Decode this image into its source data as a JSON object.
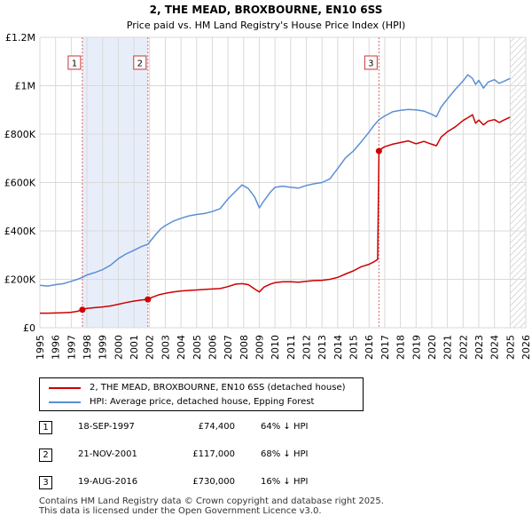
{
  "chart_data": {
    "type": "line",
    "title": "2, THE MEAD, BROXBOURNE, EN10 6SS",
    "subtitle": "Price paid vs. HM Land Registry's House Price Index (HPI)",
    "xlabel": "",
    "ylabel": "",
    "xlim": [
      1995,
      2026
    ],
    "ylim": [
      0,
      1200000
    ],
    "x_ticks": [
      1995,
      1996,
      1997,
      1998,
      1999,
      2000,
      2001,
      2002,
      2003,
      2004,
      2005,
      2006,
      2007,
      2008,
      2009,
      2010,
      2011,
      2012,
      2013,
      2014,
      2015,
      2016,
      2017,
      2018,
      2019,
      2020,
      2021,
      2022,
      2023,
      2024,
      2025,
      2026
    ],
    "x_tick_labels": [
      "1995",
      "1996",
      "1997",
      "1998",
      "1999",
      "2000",
      "2001",
      "2002",
      "2003",
      "2004",
      "2005",
      "2006",
      "2007",
      "2008",
      "2009",
      "2010",
      "2011",
      "2012",
      "2013",
      "2014",
      "2015",
      "2016",
      "2017",
      "2018",
      "2019",
      "2020",
      "2021",
      "2022",
      "2023",
      "2024",
      "2025",
      "2026"
    ],
    "y_ticks": [
      0,
      200000,
      400000,
      600000,
      800000,
      1000000,
      1200000
    ],
    "y_tick_labels": [
      "£0",
      "£200K",
      "£400K",
      "£600K",
      "£800K",
      "£1M",
      "£1.2M"
    ],
    "grid": true,
    "shaded_range": [
      1997.71,
      2001.89
    ],
    "hatched_from": 2025.0,
    "series": [
      {
        "name": "2, THE MEAD, BROXBOURNE, EN10 6SS (detached house)",
        "color": "#cc0000",
        "x": [
          1995.0,
          1995.5,
          1996.0,
          1996.5,
          1997.0,
          1997.4,
          1997.71,
          1998.0,
          1998.5,
          1999.0,
          1999.5,
          2000.0,
          2000.5,
          2001.0,
          2001.5,
          2001.89,
          2002.2,
          2002.6,
          2003.0,
          2003.5,
          2004.0,
          2004.5,
          2005.0,
          2005.5,
          2006.0,
          2006.5,
          2007.0,
          2007.5,
          2007.9,
          2008.3,
          2008.7,
          2009.0,
          2009.3,
          2009.7,
          2010.0,
          2010.5,
          2011.0,
          2011.5,
          2012.0,
          2012.5,
          2013.0,
          2013.5,
          2014.0,
          2014.5,
          2015.0,
          2015.5,
          2016.0,
          2016.3,
          2016.55,
          2016.63,
          2016.8,
          2017.0,
          2017.5,
          2018.0,
          2018.5,
          2019.0,
          2019.5,
          2020.0,
          2020.3,
          2020.6,
          2021.0,
          2021.5,
          2022.0,
          2022.3,
          2022.6,
          2022.8,
          2023.0,
          2023.3,
          2023.6,
          2024.0,
          2024.3,
          2024.6,
          2025.0
        ],
        "y": [
          60000,
          60000,
          61000,
          62000,
          64000,
          68000,
          74400,
          80000,
          83000,
          86000,
          90000,
          97000,
          104000,
          110000,
          115000,
          117000,
          127000,
          136000,
          142000,
          148000,
          152000,
          154000,
          156000,
          158000,
          160000,
          162000,
          170000,
          180000,
          182000,
          178000,
          160000,
          148000,
          168000,
          180000,
          186000,
          190000,
          190000,
          188000,
          192000,
          195000,
          196000,
          200000,
          208000,
          222000,
          235000,
          252000,
          262000,
          272000,
          282000,
          730000,
          740000,
          748000,
          758000,
          765000,
          772000,
          760000,
          770000,
          758000,
          752000,
          788000,
          810000,
          830000,
          856000,
          868000,
          880000,
          845000,
          858000,
          838000,
          854000,
          860000,
          848000,
          858000,
          870000
        ]
      },
      {
        "name": "HPI: Average price, detached house, Epping Forest",
        "color": "#5b8fd6",
        "x": [
          1995.0,
          1995.5,
          1996.0,
          1996.5,
          1997.0,
          1997.4,
          1997.71,
          1998.0,
          1998.5,
          1999.0,
          1999.5,
          2000.0,
          2000.5,
          2001.0,
          2001.5,
          2001.89,
          2002.3,
          2002.7,
          2003.0,
          2003.5,
          2004.0,
          2004.5,
          2005.0,
          2005.5,
          2006.0,
          2006.5,
          2007.0,
          2007.5,
          2007.9,
          2008.3,
          2008.7,
          2009.0,
          2009.3,
          2009.7,
          2010.0,
          2010.5,
          2011.0,
          2011.5,
          2012.0,
          2012.5,
          2013.0,
          2013.5,
          2014.0,
          2014.5,
          2015.0,
          2015.5,
          2016.0,
          2016.3,
          2016.63,
          2017.0,
          2017.5,
          2018.0,
          2018.5,
          2019.0,
          2019.5,
          2020.0,
          2020.3,
          2020.6,
          2021.0,
          2021.5,
          2022.0,
          2022.3,
          2022.6,
          2022.8,
          2023.0,
          2023.3,
          2023.6,
          2024.0,
          2024.3,
          2024.6,
          2025.0
        ],
        "y": [
          175000,
          172000,
          178000,
          182000,
          192000,
          200000,
          208000,
          218000,
          228000,
          240000,
          258000,
          285000,
          305000,
          320000,
          336000,
          345000,
          378000,
          408000,
          422000,
          440000,
          452000,
          462000,
          468000,
          472000,
          480000,
          492000,
          532000,
          565000,
          590000,
          575000,
          540000,
          495000,
          525000,
          560000,
          580000,
          585000,
          580000,
          577000,
          588000,
          595000,
          600000,
          615000,
          658000,
          702000,
          730000,
          768000,
          808000,
          835000,
          860000,
          875000,
          892000,
          898000,
          902000,
          900000,
          895000,
          882000,
          872000,
          912000,
          945000,
          985000,
          1020000,
          1045000,
          1030000,
          1005000,
          1022000,
          990000,
          1015000,
          1025000,
          1010000,
          1018000,
          1030000
        ]
      }
    ],
    "transactions": [
      {
        "label": "1",
        "x": 1997.71,
        "y": 74400
      },
      {
        "label": "2",
        "x": 2001.89,
        "y": 117000
      },
      {
        "label": "3",
        "x": 2016.63,
        "y": 730000
      }
    ]
  },
  "legend": {
    "property": "2, THE MEAD, BROXBOURNE, EN10 6SS (detached house)",
    "hpi": "HPI: Average price, detached house, Epping Forest",
    "property_color": "#cc0000",
    "hpi_color": "#5b8fd6"
  },
  "table": [
    {
      "num": "1",
      "date": "18-SEP-1997",
      "price": "£74,400",
      "hpi": "64% ↓ HPI"
    },
    {
      "num": "2",
      "date": "21-NOV-2001",
      "price": "£117,000",
      "hpi": "68% ↓ HPI"
    },
    {
      "num": "3",
      "date": "19-AUG-2016",
      "price": "£730,000",
      "hpi": "16% ↓ HPI"
    }
  ],
  "footer": {
    "line1": "Contains HM Land Registry data © Crown copyright and database right 2025.",
    "line2": "This data is licensed under the Open Government Licence v3.0."
  }
}
